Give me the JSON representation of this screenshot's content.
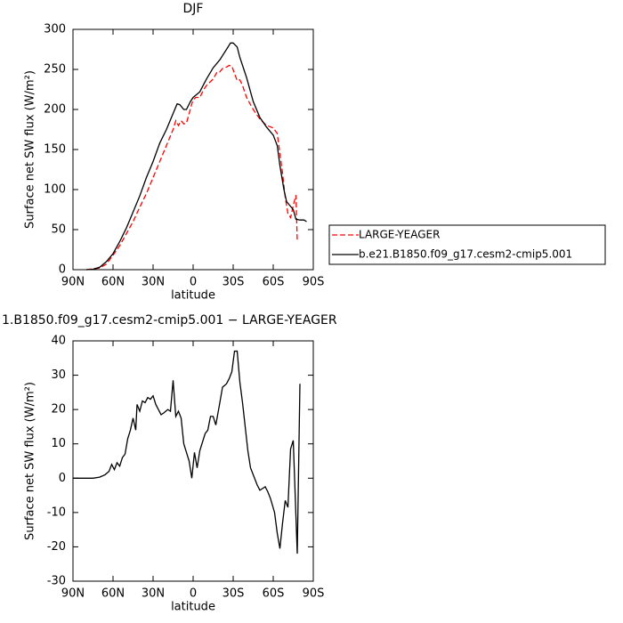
{
  "chart_data": [
    {
      "type": "line",
      "title": "DJF",
      "x_label": "latitude",
      "y_label": "Surface net SW flux (W/m²)",
      "xlim": [
        90,
        -90
      ],
      "ylim": [
        0,
        300
      ],
      "xticks": [
        {
          "value": 90,
          "label": "90N"
        },
        {
          "value": 60,
          "label": "60N"
        },
        {
          "value": 30,
          "label": "30N"
        },
        {
          "value": 0,
          "label": "0"
        },
        {
          "value": -30,
          "label": "30S"
        },
        {
          "value": -60,
          "label": "60S"
        },
        {
          "value": -90,
          "label": "90S"
        }
      ],
      "yticks": [
        0,
        50,
        100,
        150,
        200,
        250,
        300
      ],
      "legend": "right",
      "series": [
        {
          "name": "LARGE-YEAGER",
          "color": "#ff0000",
          "dashed": true,
          "x": [
            80,
            70,
            65,
            60,
            55,
            50,
            45,
            40,
            35,
            30,
            25,
            20,
            15,
            13,
            11,
            9,
            7,
            5,
            3,
            1,
            0,
            -2,
            -5,
            -8,
            -10,
            -15,
            -18,
            -20,
            -22,
            -25,
            -27,
            -29,
            -31,
            -33,
            -35,
            -37,
            -40,
            -45,
            -50,
            -55,
            -60,
            -63,
            -65,
            -67,
            -69,
            -71,
            -73,
            -75,
            -77,
            -78
          ],
          "values": [
            0,
            2,
            7,
            18,
            30,
            45,
            60,
            78,
            95,
            115,
            135,
            155,
            175,
            186,
            180,
            186,
            182,
            183,
            195,
            207,
            212,
            215,
            215,
            225,
            230,
            238,
            247,
            247,
            251,
            253,
            255,
            254,
            245,
            236,
            237,
            230,
            215,
            200,
            188,
            180,
            177,
            170,
            145,
            120,
            90,
            70,
            65,
            80,
            93,
            35
          ]
        },
        {
          "name": "b.e21.B1850.f09_g17.cesm2-cmip5.001",
          "color": "#000000",
          "dashed": false,
          "x": [
            80,
            75,
            70,
            65,
            60,
            55,
            50,
            45,
            40,
            35,
            30,
            25,
            20,
            15,
            12,
            10,
            7,
            5,
            2,
            0,
            -5,
            -10,
            -15,
            -20,
            -25,
            -28,
            -30,
            -33,
            -35,
            -40,
            -45,
            -50,
            -55,
            -60,
            -63,
            -65,
            -68,
            -70,
            -75,
            -77,
            -80,
            -83,
            -85
          ],
          "values": [
            0,
            0.5,
            3,
            10,
            20,
            35,
            52,
            72,
            92,
            115,
            135,
            158,
            175,
            195,
            207,
            206,
            200,
            200,
            210,
            215,
            222,
            238,
            252,
            262,
            275,
            283,
            283,
            278,
            265,
            240,
            210,
            190,
            178,
            168,
            155,
            130,
            100,
            85,
            75,
            63,
            62,
            62,
            60
          ]
        }
      ]
    },
    {
      "type": "line",
      "title": "1.B1850.f09_g17.cesm2-cmip5.001 − LARGE-YEAGER",
      "x_label": "latitude",
      "y_label": "Surface net SW flux (W/m²)",
      "xlim": [
        90,
        -90
      ],
      "ylim": [
        -30,
        40
      ],
      "xticks": [
        {
          "value": 90,
          "label": "90N"
        },
        {
          "value": 60,
          "label": "60N"
        },
        {
          "value": 30,
          "label": "30N"
        },
        {
          "value": 0,
          "label": "0"
        },
        {
          "value": -30,
          "label": "30S"
        },
        {
          "value": -60,
          "label": "60S"
        },
        {
          "value": -90,
          "label": "90S"
        }
      ],
      "yticks": [
        -30,
        -20,
        -10,
        0,
        10,
        20,
        30,
        40
      ],
      "series": [
        {
          "color": "#000000",
          "dashed": false,
          "x": [
            90,
            75,
            70,
            66,
            63,
            61,
            59,
            57,
            55,
            53,
            51,
            49,
            47,
            45,
            43,
            42,
            40,
            38,
            36,
            34,
            32,
            30,
            28,
            26,
            24,
            22,
            19,
            17,
            15,
            13,
            11,
            9,
            7,
            3,
            1,
            -1,
            -3,
            -5,
            -9,
            -11,
            -13,
            -15,
            -17,
            -20,
            -22,
            -25,
            -27,
            -29,
            -31,
            -33,
            -35,
            -37,
            -39,
            -41,
            -43,
            -46,
            -48,
            -50,
            -52,
            -54,
            -56,
            -58,
            -61,
            -63,
            -65,
            -67,
            -69,
            -71,
            -73,
            -75,
            -76,
            -78,
            -80
          ],
          "values": [
            0,
            0,
            0.3,
            1,
            2,
            4,
            2.5,
            4.5,
            3.5,
            6,
            7,
            11.5,
            14,
            17.5,
            14,
            21.5,
            19.5,
            22.5,
            22,
            23.5,
            23,
            24,
            21.5,
            20,
            18.5,
            19,
            20,
            19.5,
            28.5,
            18,
            19.5,
            17.5,
            10,
            5,
            0,
            7.5,
            3,
            8,
            13,
            14,
            18,
            18,
            15.5,
            22,
            26.5,
            27.5,
            29,
            31,
            37,
            37,
            28,
            22,
            15,
            8,
            3,
            0,
            -2,
            -3.5,
            -3,
            -2.5,
            -4,
            -6,
            -10,
            -16,
            -20.5,
            -13,
            -6.5,
            -8.5,
            8.5,
            11,
            0,
            -22,
            27.5
          ]
        }
      ]
    }
  ]
}
